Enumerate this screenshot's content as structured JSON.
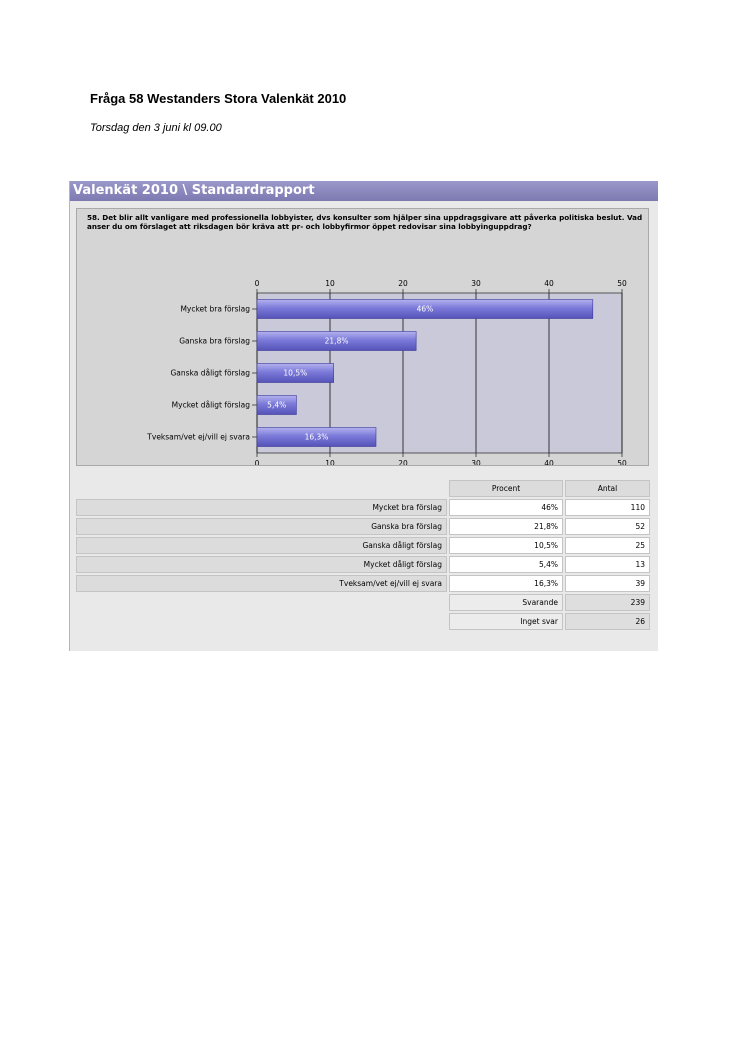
{
  "document": {
    "title": "Fråga 58 Westanders Stora Valenkät 2010",
    "date": "Torsdag den 3 juni kl 09.00"
  },
  "report": {
    "header": "Valenkät 2010 \\ Standardrapport",
    "question": "58. Det blir allt vanligare med professionella lobbyister, dvs konsulter som hjälper sina uppdragsgivare att påverka politiska beslut. Vad anser du om förslaget att riksdagen bör kräva att pr- och lobbyfirmor öppet redovisar sina lobbyinguppdrag?"
  },
  "chart_data": {
    "type": "bar",
    "orientation": "horizontal",
    "categories": [
      "Mycket bra förslag",
      "Ganska bra förslag",
      "Ganska dåligt förslag",
      "Mycket dåligt förslag",
      "Tveksam/vet ej/vill ej svara"
    ],
    "values": [
      46,
      21.8,
      10.5,
      5.4,
      16.3
    ],
    "value_labels": [
      "46%",
      "21,8%",
      "10,5%",
      "5,4%",
      "16,3%"
    ],
    "xlim": [
      0,
      50
    ],
    "ticks": [
      "0",
      "10",
      "20",
      "30",
      "40",
      "50"
    ],
    "grid": true,
    "bar_color": "#7b79d8",
    "plot_background": "#c9c9d9"
  },
  "table": {
    "headers": {
      "percent": "Procent",
      "count": "Antal"
    },
    "rows": [
      {
        "label": "Mycket bra förslag",
        "percent": "46%",
        "count": "110"
      },
      {
        "label": "Ganska bra förslag",
        "percent": "21,8%",
        "count": "52"
      },
      {
        "label": "Ganska dåligt förslag",
        "percent": "10,5%",
        "count": "25"
      },
      {
        "label": "Mycket dåligt förslag",
        "percent": "5,4%",
        "count": "13"
      },
      {
        "label": "Tveksam/vet ej/vill ej svara",
        "percent": "16,3%",
        "count": "39"
      }
    ],
    "summary": [
      {
        "label": "Svarande",
        "value": "239"
      },
      {
        "label": "Inget svar",
        "value": "26"
      }
    ]
  }
}
